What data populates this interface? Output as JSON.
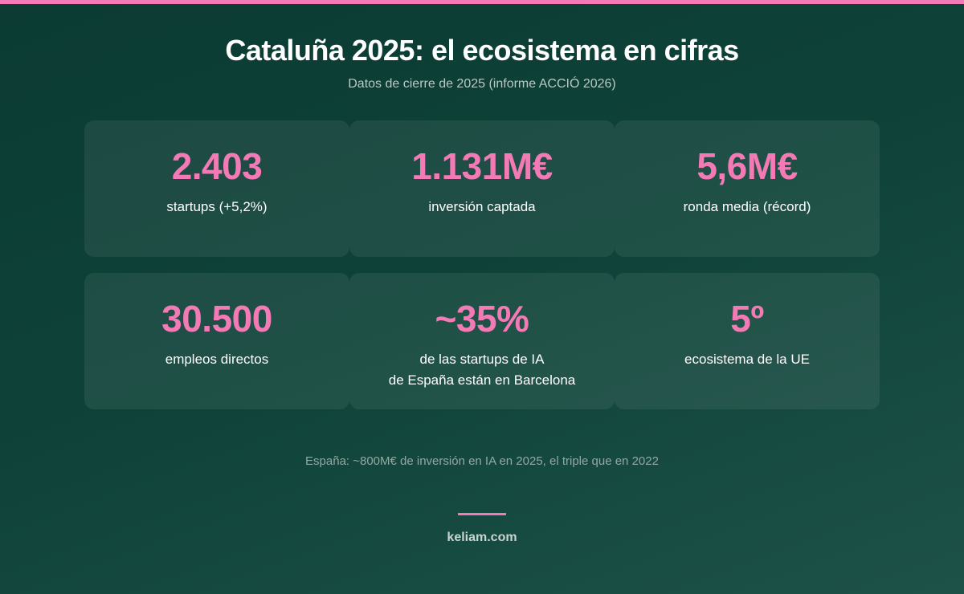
{
  "header": {
    "title": "Cataluña 2025: el ecosistema en cifras",
    "subtitle": "Datos de cierre de 2025 (informe ACCIÓ 2026)"
  },
  "stats": [
    {
      "value": "2.403",
      "label": "startups (+5,2%)"
    },
    {
      "value": "1.131M€",
      "label": "inversión captada"
    },
    {
      "value": "5,6M€",
      "label": "ronda media (récord)"
    },
    {
      "value": "30.500",
      "label": "empleos directos"
    },
    {
      "value": "~35%",
      "label": "de las startups de IA\nde España están en Barcelona"
    },
    {
      "value": "5º",
      "label": "ecosistema de la UE"
    }
  ],
  "footnote": "España: ~800M€ de inversión en IA en 2025, el triple que en 2022",
  "brand": "keliam.com",
  "colors": {
    "accent": "#f47ab6",
    "background": "#0e4238"
  }
}
